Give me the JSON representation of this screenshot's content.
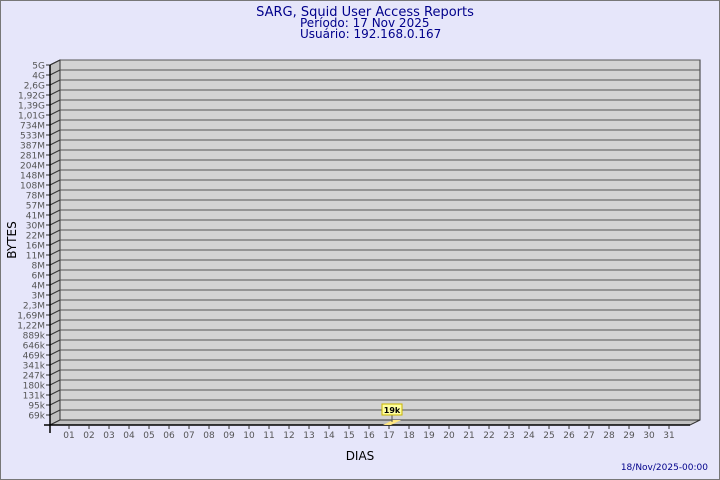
{
  "chart_data": {
    "type": "bar",
    "title": "SARG, Squid User Access Reports",
    "subtitle": [
      "Período: 17 Nov 2025",
      "Usuário: 192.168.0.167"
    ],
    "xlabel": "DIAS",
    "ylabel": "BYTES",
    "y_scale": "log",
    "y_tick_labels": [
      "5G",
      "4G",
      "2,6G",
      "1,92G",
      "1,39G",
      "1,01G",
      "734M",
      "533M",
      "387M",
      "281M",
      "204M",
      "148M",
      "108M",
      "78M",
      "57M",
      "41M",
      "30M",
      "22M",
      "16M",
      "11M",
      "8M",
      "6M",
      "4M",
      "3M",
      "2,3M",
      "1,69M",
      "1,22M",
      "889k",
      "646k",
      "469k",
      "341k",
      "247k",
      "180k",
      "131k",
      "95k",
      "69k"
    ],
    "categories": [
      "01",
      "02",
      "03",
      "04",
      "05",
      "06",
      "07",
      "08",
      "09",
      "10",
      "11",
      "12",
      "13",
      "14",
      "15",
      "16",
      "17",
      "18",
      "19",
      "20",
      "21",
      "22",
      "23",
      "24",
      "25",
      "26",
      "27",
      "28",
      "29",
      "30",
      "31"
    ],
    "bars": [
      {
        "category": "17",
        "value": 19000,
        "label": "19k"
      }
    ],
    "grid": true,
    "colors": {
      "background": "#e6e6fa",
      "panel": "#d3d3d3",
      "side_wall": "#c0c0c0",
      "grid": "#555555",
      "bar": "#ffe680",
      "title": "#00008b",
      "tick_text": "#555555"
    }
  },
  "footer": {
    "date": "18/Nov/2025-00:00"
  }
}
